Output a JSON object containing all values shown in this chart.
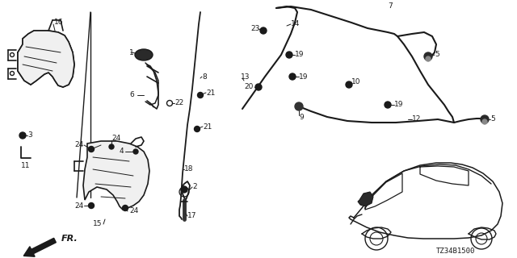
{
  "bg_color": "#ffffff",
  "line_color": "#1a1a1a",
  "label_color": "#000000",
  "font_size": 6.5,
  "diagram_code": "TZ34B1500",
  "figsize": [
    6.4,
    3.2
  ],
  "dpi": 100
}
